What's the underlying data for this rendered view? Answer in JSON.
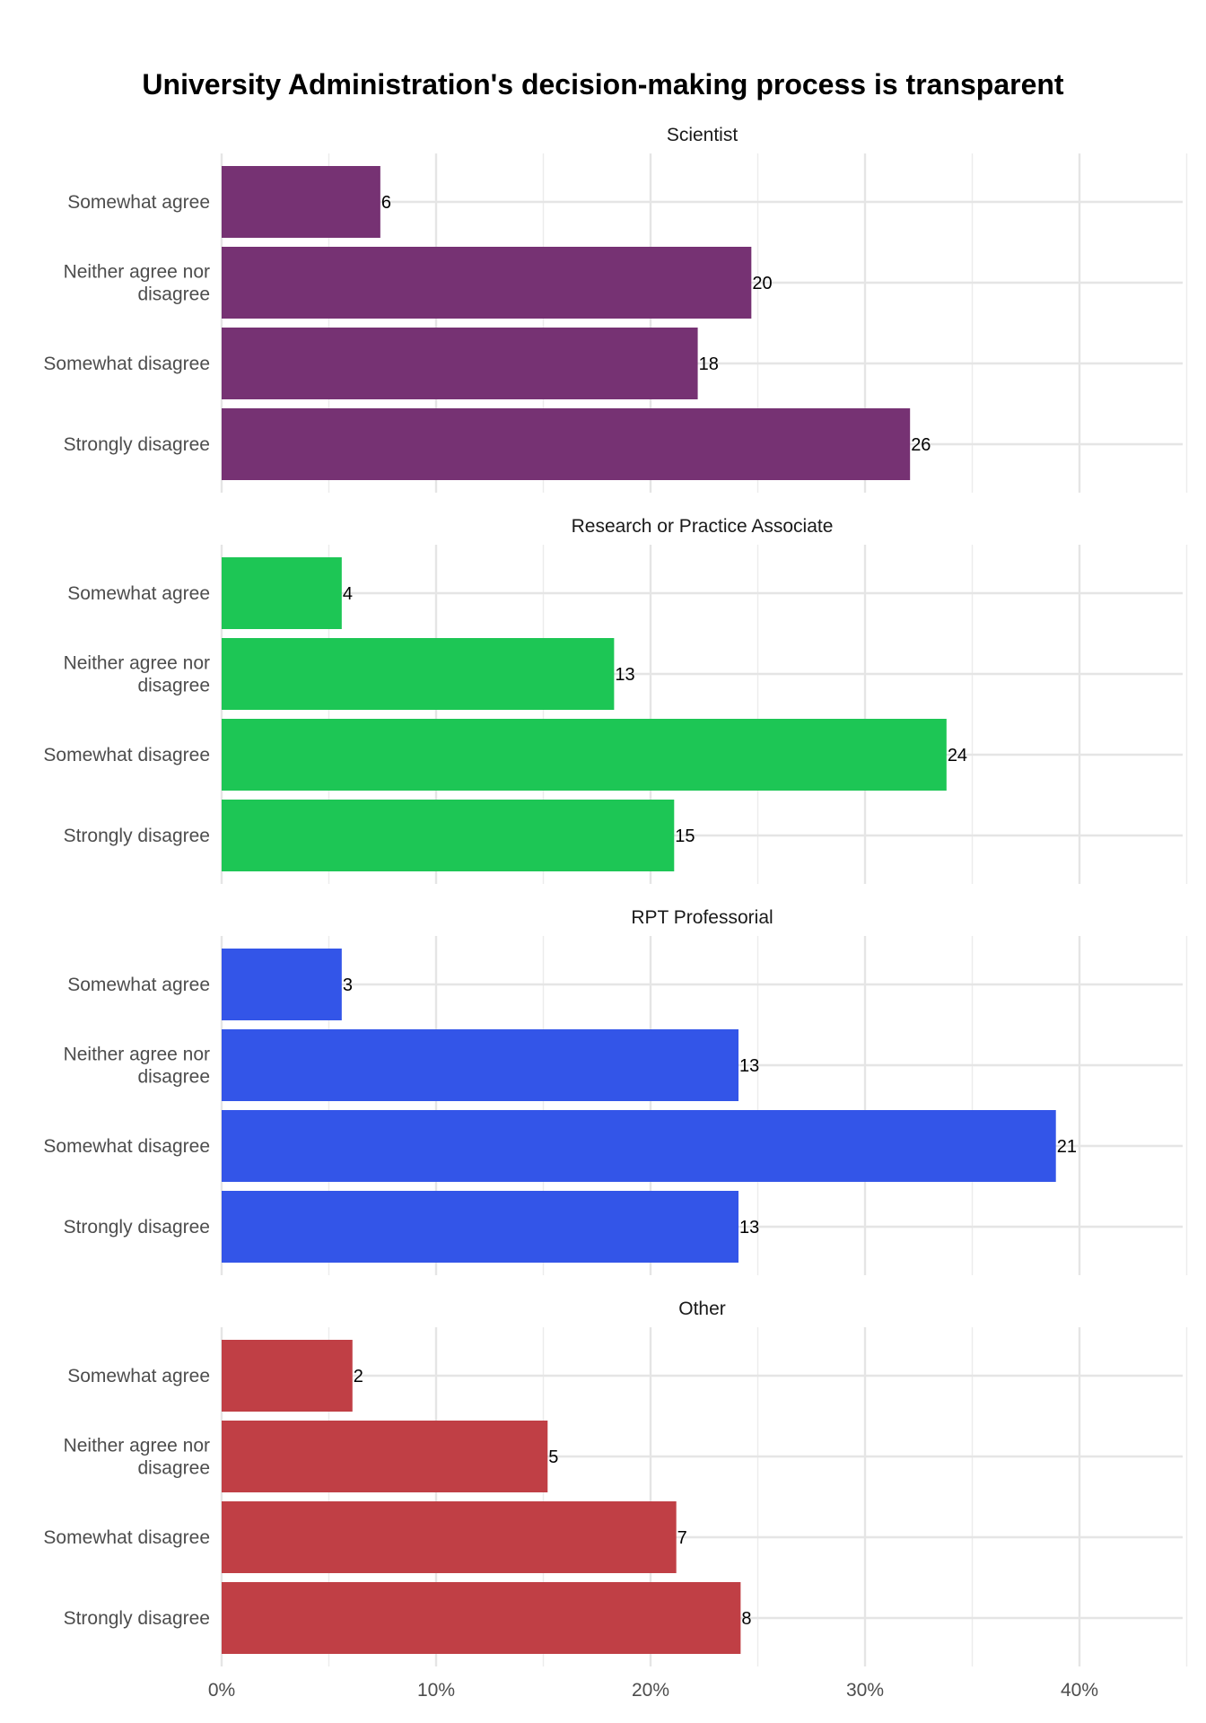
{
  "chart_data": {
    "type": "bar",
    "orientation": "horizontal",
    "title": "University Administration's decision-making process is transparent",
    "xlabel": "",
    "ylabel": "",
    "xlim": [
      0,
      45
    ],
    "x_ticks": [
      0,
      10,
      20,
      30,
      40
    ],
    "x_tick_labels": [
      "0%",
      "10%",
      "20%",
      "30%",
      "40%"
    ],
    "grid": true,
    "categories": [
      "Somewhat agree",
      "Neither agree nor disagree",
      "Somewhat disagree",
      "Strongly disagree"
    ],
    "category_display": [
      [
        "Somewhat agree"
      ],
      [
        "Neither agree nor",
        "disagree"
      ],
      [
        "Somewhat disagree"
      ],
      [
        "Strongly disagree"
      ]
    ],
    "panels": [
      {
        "name": "Scientist",
        "color": "#763273",
        "percent": [
          7.4,
          24.7,
          22.2,
          32.1
        ],
        "counts": [
          "6",
          "20",
          "18",
          "26"
        ]
      },
      {
        "name": "Research or Practice Associate",
        "color": "#1dc655",
        "percent": [
          5.6,
          18.3,
          33.8,
          21.1
        ],
        "counts": [
          "4",
          "13",
          "24",
          "15"
        ]
      },
      {
        "name": "RPT Professorial",
        "color": "#3355e8",
        "percent": [
          5.6,
          24.1,
          38.9,
          24.1
        ],
        "counts": [
          "3",
          "13",
          "21",
          "13"
        ]
      },
      {
        "name": "Other",
        "color": "#c03f45",
        "percent": [
          6.1,
          15.2,
          21.2,
          24.2
        ],
        "counts": [
          "2",
          "5",
          "7",
          "8"
        ]
      }
    ]
  }
}
